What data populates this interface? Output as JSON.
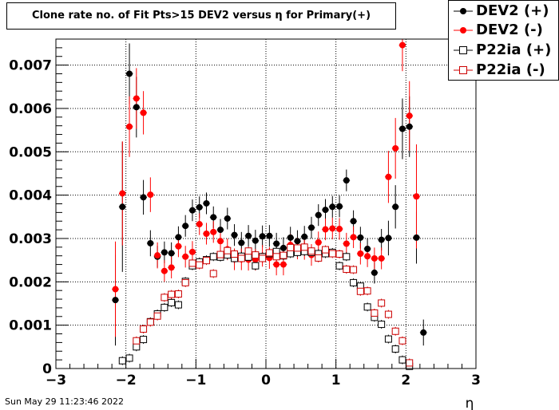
{
  "chart_data": {
    "type": "scatter",
    "title": "Clone rate no. of Fit Pts>15 DEV2 versus η for Primary(+)",
    "xlabel": "η",
    "ylabel": "",
    "xlim": [
      -3,
      3
    ],
    "ylim": [
      0,
      0.0076
    ],
    "xticks": [
      "−3",
      "−2",
      "−1",
      "0",
      "1",
      "2",
      "3"
    ],
    "yticks": [
      "0",
      "0.001",
      "0.002",
      "0.003",
      "0.004",
      "0.005",
      "0.006",
      "0.007"
    ],
    "grid": true,
    "legend_position": "top-right",
    "timestamp": "Sun May 29 11:23:46 2022",
    "series": [
      {
        "name": "DEV2 (+)",
        "marker": "filled-circle",
        "color": "#000000",
        "points": [
          [
            -2.15,
            0.00158,
            0.00105
          ],
          [
            -2.05,
            0.00373,
            0.0015
          ],
          [
            -1.95,
            0.0068,
            0.0007
          ],
          [
            -1.85,
            0.00603,
            0.0007
          ],
          [
            -1.75,
            0.00395,
            0.0004
          ],
          [
            -1.65,
            0.00289,
            0.0003
          ],
          [
            -1.55,
            0.00258,
            0.00025
          ],
          [
            -1.45,
            0.00268,
            0.00025
          ],
          [
            -1.35,
            0.00266,
            0.00025
          ],
          [
            -1.25,
            0.00303,
            0.00025
          ],
          [
            -1.15,
            0.00329,
            0.00025
          ],
          [
            -1.05,
            0.00365,
            0.00025
          ],
          [
            -0.95,
            0.00372,
            0.00025
          ],
          [
            -0.85,
            0.00381,
            0.00025
          ],
          [
            -0.75,
            0.00349,
            0.00025
          ],
          [
            -0.65,
            0.0032,
            0.00025
          ],
          [
            -0.55,
            0.00346,
            0.00025
          ],
          [
            -0.45,
            0.00308,
            0.00025
          ],
          [
            -0.35,
            0.0029,
            0.00025
          ],
          [
            -0.25,
            0.00306,
            0.00025
          ],
          [
            -0.15,
            0.00295,
            0.00025
          ],
          [
            -0.05,
            0.00305,
            0.00025
          ],
          [
            0.05,
            0.00306,
            0.00025
          ],
          [
            0.15,
            0.00288,
            0.00025
          ],
          [
            0.25,
            0.00278,
            0.00025
          ],
          [
            0.35,
            0.00302,
            0.00025
          ],
          [
            0.45,
            0.00294,
            0.00025
          ],
          [
            0.55,
            0.00304,
            0.00025
          ],
          [
            0.65,
            0.00325,
            0.00025
          ],
          [
            0.75,
            0.00354,
            0.00025
          ],
          [
            0.85,
            0.00366,
            0.00025
          ],
          [
            0.95,
            0.00373,
            0.00025
          ],
          [
            1.05,
            0.00374,
            0.00025
          ],
          [
            1.15,
            0.00434,
            0.00025
          ],
          [
            1.25,
            0.0034,
            0.00025
          ],
          [
            1.35,
            0.00302,
            0.00025
          ],
          [
            1.45,
            0.00276,
            0.00025
          ],
          [
            1.55,
            0.00221,
            0.00025
          ],
          [
            1.65,
            0.00297,
            0.00025
          ],
          [
            1.75,
            0.00301,
            0.0004
          ],
          [
            1.85,
            0.00373,
            0.0005
          ],
          [
            1.95,
            0.00553,
            0.0007
          ],
          [
            2.05,
            0.00558,
            0.0007
          ],
          [
            2.15,
            0.00302,
            0.0006
          ],
          [
            2.25,
            0.00083,
            0.0003
          ]
        ]
      },
      {
        "name": "DEV2 (-)",
        "marker": "filled-circle",
        "color": "#ff0000",
        "points": [
          [
            -2.15,
            0.00183,
            0.0011
          ],
          [
            -2.05,
            0.00404,
            0.0012
          ],
          [
            -1.95,
            0.00558,
            0.0007
          ],
          [
            -1.85,
            0.00623,
            0.0007
          ],
          [
            -1.75,
            0.0059,
            0.0005
          ],
          [
            -1.65,
            0.00401,
            0.0004
          ],
          [
            -1.55,
            0.00261,
            0.0003
          ],
          [
            -1.45,
            0.00225,
            0.00025
          ],
          [
            -1.35,
            0.00233,
            0.00025
          ],
          [
            -1.25,
            0.00282,
            0.00025
          ],
          [
            -1.15,
            0.00258,
            0.00025
          ],
          [
            -1.05,
            0.00269,
            0.00025
          ],
          [
            -0.95,
            0.00333,
            0.00025
          ],
          [
            -0.85,
            0.00311,
            0.00025
          ],
          [
            -0.75,
            0.00315,
            0.00025
          ],
          [
            -0.65,
            0.00294,
            0.00025
          ],
          [
            -0.55,
            0.00275,
            0.00025
          ],
          [
            -0.45,
            0.00252,
            0.00025
          ],
          [
            -0.35,
            0.00252,
            0.00025
          ],
          [
            -0.25,
            0.00251,
            0.00025
          ],
          [
            -0.15,
            0.00251,
            0.00025
          ],
          [
            -0.05,
            0.0026,
            0.00025
          ],
          [
            0.05,
            0.00255,
            0.00025
          ],
          [
            0.15,
            0.0024,
            0.00025
          ],
          [
            0.25,
            0.0024,
            0.00025
          ],
          [
            0.35,
            0.00285,
            0.00025
          ],
          [
            0.45,
            0.00277,
            0.00025
          ],
          [
            0.55,
            0.00276,
            0.00025
          ],
          [
            0.65,
            0.00262,
            0.00025
          ],
          [
            0.75,
            0.00291,
            0.00025
          ],
          [
            0.85,
            0.00321,
            0.00025
          ],
          [
            0.95,
            0.00323,
            0.00025
          ],
          [
            1.05,
            0.00322,
            0.00025
          ],
          [
            1.15,
            0.00288,
            0.00025
          ],
          [
            1.25,
            0.00303,
            0.00025
          ],
          [
            1.35,
            0.00265,
            0.00025
          ],
          [
            1.45,
            0.00259,
            0.00025
          ],
          [
            1.55,
            0.00254,
            0.00025
          ],
          [
            1.65,
            0.00254,
            0.00025
          ],
          [
            1.75,
            0.00442,
            0.0006
          ],
          [
            1.85,
            0.00508,
            0.0007
          ],
          [
            1.95,
            0.00746,
            0.0006
          ],
          [
            2.05,
            0.00583,
            0.0008
          ],
          [
            2.15,
            0.00397,
            0.0012
          ]
        ]
      },
      {
        "name": "P22ia (+)",
        "marker": "open-square",
        "color": "#000000",
        "points": [
          [
            -2.05,
            0.00018,
            0.0001
          ],
          [
            -1.95,
            0.00024,
            0.0001
          ],
          [
            -1.85,
            0.0005,
            0.0001
          ],
          [
            -1.75,
            0.00067,
            0.0001
          ],
          [
            -1.65,
            0.00108,
            0.0001
          ],
          [
            -1.55,
            0.00126,
            0.0001
          ],
          [
            -1.45,
            0.00141,
            0.0001
          ],
          [
            -1.35,
            0.00152,
            0.0001
          ],
          [
            -1.25,
            0.00147,
            0.0001
          ],
          [
            -1.15,
            0.00201,
            0.0001
          ],
          [
            -1.05,
            0.00237,
            0.0001
          ],
          [
            -0.95,
            0.00246,
            0.0001
          ],
          [
            -0.85,
            0.00251,
            0.0001
          ],
          [
            -0.75,
            0.00258,
            0.0001
          ],
          [
            -0.65,
            0.00257,
            0.0001
          ],
          [
            -0.55,
            0.00262,
            0.0001
          ],
          [
            -0.45,
            0.00254,
            0.0001
          ],
          [
            -0.35,
            0.00259,
            0.0001
          ],
          [
            -0.25,
            0.00257,
            0.0001
          ],
          [
            -0.15,
            0.00237,
            0.0001
          ],
          [
            -0.05,
            0.00258,
            0.0001
          ],
          [
            0.05,
            0.00265,
            0.0001
          ],
          [
            0.15,
            0.0027,
            0.0001
          ],
          [
            0.25,
            0.0026,
            0.0001
          ],
          [
            0.35,
            0.00265,
            0.0001
          ],
          [
            0.45,
            0.00268,
            0.0001
          ],
          [
            0.55,
            0.0027,
            0.0001
          ],
          [
            0.65,
            0.00268,
            0.0001
          ],
          [
            0.75,
            0.00265,
            0.0001
          ],
          [
            0.85,
            0.00265,
            0.0001
          ],
          [
            0.95,
            0.00268,
            0.0001
          ],
          [
            1.05,
            0.00237,
            0.0001
          ],
          [
            1.15,
            0.00258,
            0.0001
          ],
          [
            1.25,
            0.00198,
            0.0001
          ],
          [
            1.35,
            0.0019,
            0.0001
          ],
          [
            1.45,
            0.00142,
            0.0001
          ],
          [
            1.55,
            0.00118,
            0.0001
          ],
          [
            1.65,
            0.00102,
            0.0001
          ],
          [
            1.75,
            0.00068,
            0.0001
          ],
          [
            1.85,
            0.00045,
            0.0001
          ],
          [
            1.95,
            0.0002,
            0.0001
          ],
          [
            2.05,
            5e-05,
            0.0001
          ]
        ]
      },
      {
        "name": "P22ia (-)",
        "marker": "open-square",
        "color": "#cc0000",
        "points": [
          [
            -1.85,
            0.00064,
            0.0001
          ],
          [
            -1.75,
            0.00091,
            0.0001
          ],
          [
            -1.65,
            0.00107,
            0.0001
          ],
          [
            -1.55,
            0.00121,
            0.0001
          ],
          [
            -1.45,
            0.00164,
            0.0001
          ],
          [
            -1.35,
            0.00171,
            0.0001
          ],
          [
            -1.25,
            0.00172,
            0.0001
          ],
          [
            -1.15,
            0.00198,
            0.0001
          ],
          [
            -1.05,
            0.00243,
            0.0001
          ],
          [
            -0.95,
            0.00239,
            0.0001
          ],
          [
            -0.85,
            0.00249,
            0.0001
          ],
          [
            -0.75,
            0.00219,
            0.0001
          ],
          [
            -0.65,
            0.00263,
            0.0001
          ],
          [
            -0.55,
            0.00272,
            0.0001
          ],
          [
            -0.45,
            0.00264,
            0.0001
          ],
          [
            -0.35,
            0.00254,
            0.0001
          ],
          [
            -0.25,
            0.00271,
            0.0001
          ],
          [
            -0.15,
            0.00262,
            0.0001
          ],
          [
            -0.05,
            0.00254,
            0.0001
          ],
          [
            0.05,
            0.00267,
            0.0001
          ],
          [
            0.15,
            0.00258,
            0.0001
          ],
          [
            0.25,
            0.00261,
            0.0001
          ],
          [
            0.35,
            0.00279,
            0.0001
          ],
          [
            0.45,
            0.00278,
            0.0001
          ],
          [
            0.55,
            0.0028,
            0.0001
          ],
          [
            0.65,
            0.00271,
            0.0001
          ],
          [
            0.75,
            0.00255,
            0.0001
          ],
          [
            0.85,
            0.00274,
            0.0001
          ],
          [
            0.95,
            0.00265,
            0.0001
          ],
          [
            1.05,
            0.00264,
            0.0001
          ],
          [
            1.15,
            0.00229,
            0.0001
          ],
          [
            1.25,
            0.00228,
            0.0001
          ],
          [
            1.35,
            0.00178,
            0.0001
          ],
          [
            1.45,
            0.00179,
            0.0001
          ],
          [
            1.55,
            0.00128,
            0.0001
          ],
          [
            1.65,
            0.00151,
            0.0001
          ],
          [
            1.75,
            0.00125,
            0.0001
          ],
          [
            1.85,
            0.00086,
            0.0001
          ],
          [
            1.95,
            0.00064,
            0.0001
          ],
          [
            2.05,
            0.00013,
            0.0001
          ]
        ]
      }
    ]
  }
}
